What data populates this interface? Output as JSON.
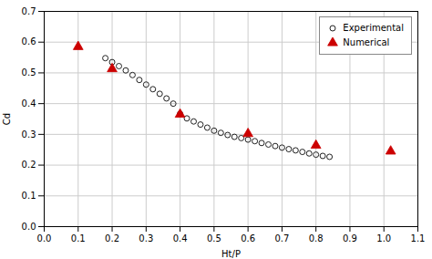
{
  "chart_data": {
    "type": "scatter",
    "xlabel": "Ht/P",
    "ylabel": "Cd",
    "xlim": [
      0.0,
      1.1
    ],
    "ylim": [
      0.0,
      0.7
    ],
    "xticks": [
      {
        "value": 0.0,
        "label": "0.0"
      },
      0.1,
      0.2,
      0.3,
      0.4,
      0.5,
      0.6,
      0.7,
      0.8,
      0.9,
      {
        "value": 1.0,
        "label": "1.0"
      },
      1.1
    ],
    "yticks": [
      {
        "value": 0.0,
        "label": "0.0"
      },
      0.1,
      0.2,
      0.3,
      0.4,
      0.5,
      0.6,
      0.7
    ],
    "grid": true,
    "legend": "upper right",
    "series": [
      {
        "name": "Experimental",
        "color": "#222222",
        "marker": "circle",
        "x": [
          0.18,
          0.2,
          0.22,
          0.24,
          0.26,
          0.28,
          0.3,
          0.32,
          0.34,
          0.36,
          0.38,
          0.4,
          0.42,
          0.44,
          0.46,
          0.48,
          0.5,
          0.52,
          0.54,
          0.56,
          0.58,
          0.6,
          0.62,
          0.64,
          0.66,
          0.68,
          0.7,
          0.72,
          0.74,
          0.76,
          0.78,
          0.8,
          0.82,
          0.84
        ],
        "values": [
          0.548,
          0.535,
          0.522,
          0.508,
          0.493,
          0.477,
          0.462,
          0.447,
          0.432,
          0.417,
          0.4,
          0.367,
          0.352,
          0.342,
          0.332,
          0.322,
          0.312,
          0.305,
          0.298,
          0.292,
          0.288,
          0.283,
          0.278,
          0.272,
          0.267,
          0.262,
          0.257,
          0.252,
          0.248,
          0.243,
          0.238,
          0.234,
          0.23,
          0.227
        ]
      },
      {
        "name": "Numerical",
        "color": "#cc0000",
        "marker": "triangle",
        "x": [
          0.1,
          0.2,
          0.4,
          0.6,
          0.8,
          1.02
        ],
        "values": [
          0.585,
          0.513,
          0.365,
          0.302,
          0.264,
          0.245
        ]
      }
    ]
  }
}
